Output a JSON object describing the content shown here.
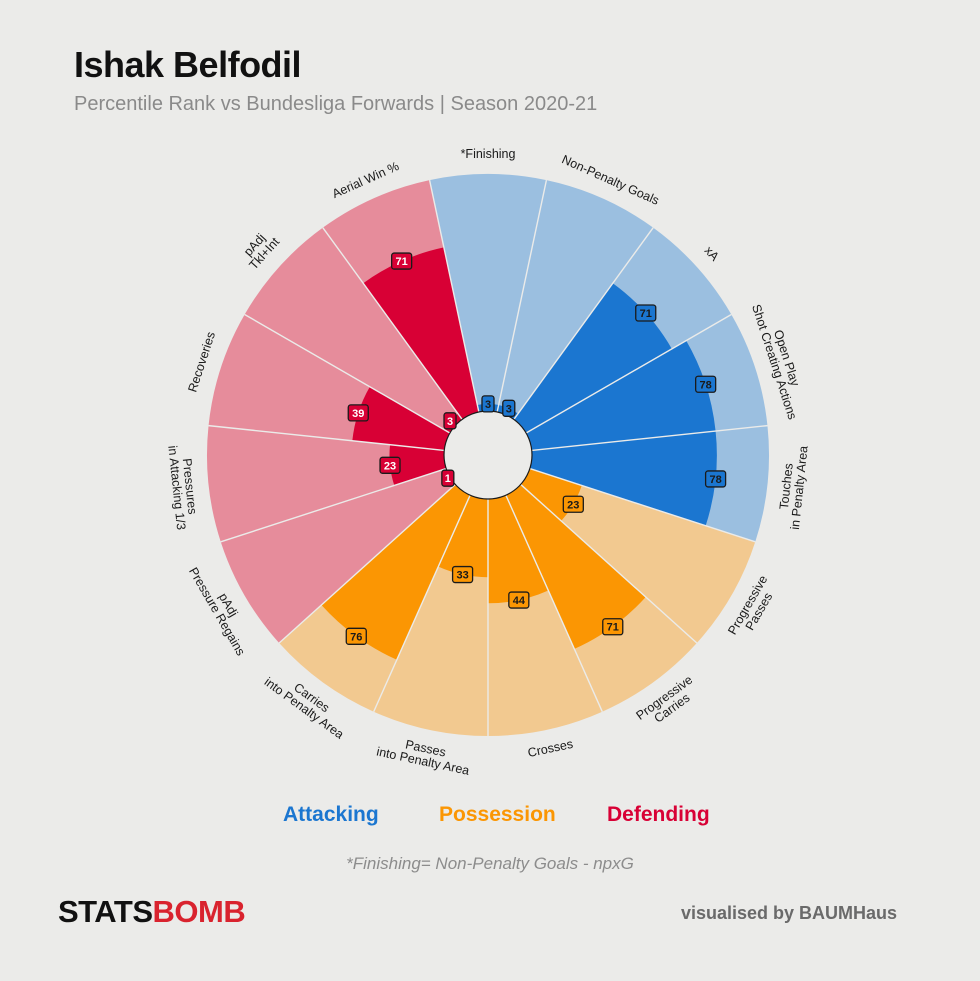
{
  "header": {
    "title": "Ishak Belfodil",
    "subtitle": "Percentile Rank vs Bundesliga Forwards  |  Season 2020-21"
  },
  "legend": {
    "attacking": "Attacking",
    "possession": "Possession",
    "defending": "Defending"
  },
  "footnote": "*Finishing= Non-Penalty Goals - npxG",
  "brand": {
    "part1": "STATS",
    "part2": "BOMB"
  },
  "credit": "visualised by BAUMHaus",
  "colors": {
    "background": "#ebebe9",
    "attacking": "#1b76d0",
    "attacking_light": "#9bbfe0",
    "possession": "#fb9603",
    "possession_light": "#f2c990",
    "defending": "#d80035",
    "defending_light": "#e68c9b"
  },
  "chart_data": {
    "type": "radar",
    "range": [
      0,
      100
    ],
    "groups": [
      "Attacking",
      "Possession",
      "Defending"
    ],
    "metrics": [
      {
        "label": "*Finishing",
        "value": 3,
        "group": "Attacking"
      },
      {
        "label": "Non-Penalty Goals",
        "value": 3,
        "group": "Attacking"
      },
      {
        "label": "xA",
        "value": 71,
        "group": "Attacking"
      },
      {
        "label": "Open Play\nShot Creating Actions",
        "value": 78,
        "group": "Attacking"
      },
      {
        "label": "Touches\nin Penalty Area",
        "value": 78,
        "group": "Attacking"
      },
      {
        "label": "Progressive\nPasses",
        "value": 23,
        "group": "Possession"
      },
      {
        "label": "Progressive\nCarries",
        "value": 71,
        "group": "Possession"
      },
      {
        "label": "Crosses",
        "value": 44,
        "group": "Possession"
      },
      {
        "label": "Passes\ninto Penalty Area",
        "value": 33,
        "group": "Possession"
      },
      {
        "label": "Carries\ninto Penalty Area",
        "value": 76,
        "group": "Possession"
      },
      {
        "label": "pAdj\nPressure Regains",
        "value": 1,
        "group": "Defending"
      },
      {
        "label": "Pressures\nin Attacking 1/3",
        "value": 23,
        "group": "Defending"
      },
      {
        "label": "Recoveries",
        "value": 39,
        "group": "Defending"
      },
      {
        "label": "pAdj\nTkl+Int",
        "value": 3,
        "group": "Defending"
      },
      {
        "label": "Aerial Win %",
        "value": 71,
        "group": "Defending"
      }
    ]
  }
}
